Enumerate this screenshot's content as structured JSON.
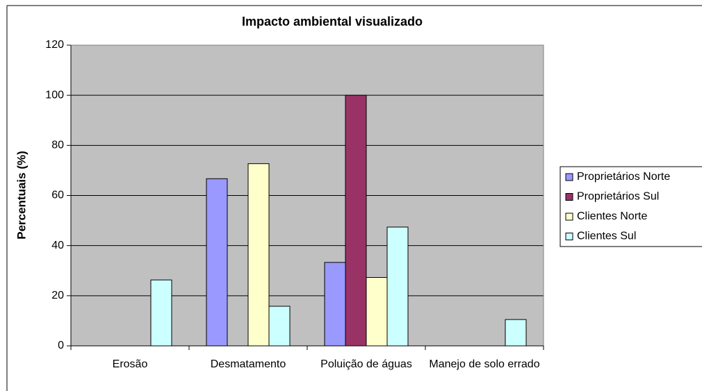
{
  "chart_data": {
    "type": "bar",
    "title": "Impacto ambiental visualizado",
    "y_label": "Percentuais (%)",
    "categories": [
      "Erosão",
      "Desmatamento",
      "Poluição de águas",
      "Manejo de solo errado"
    ],
    "series": [
      {
        "name": "Proprietários Norte",
        "color": "#9999ff",
        "values": [
          0,
          66.7,
          33.3,
          0
        ]
      },
      {
        "name": "Proprietários Sul",
        "color": "#993366",
        "values": [
          0,
          0,
          100,
          0
        ]
      },
      {
        "name": "Clientes Norte",
        "color": "#ffffcc",
        "values": [
          0,
          72.7,
          27.3,
          0
        ]
      },
      {
        "name": "Clientes Sul",
        "color": "#ccffff",
        "values": [
          26.3,
          15.8,
          47.4,
          10.5
        ]
      }
    ],
    "ylim": [
      0,
      120
    ],
    "yticks": [
      0,
      20,
      40,
      60,
      80,
      100,
      120
    ],
    "grid": true,
    "plot_background": "#c0c0c0",
    "legend": "right"
  }
}
